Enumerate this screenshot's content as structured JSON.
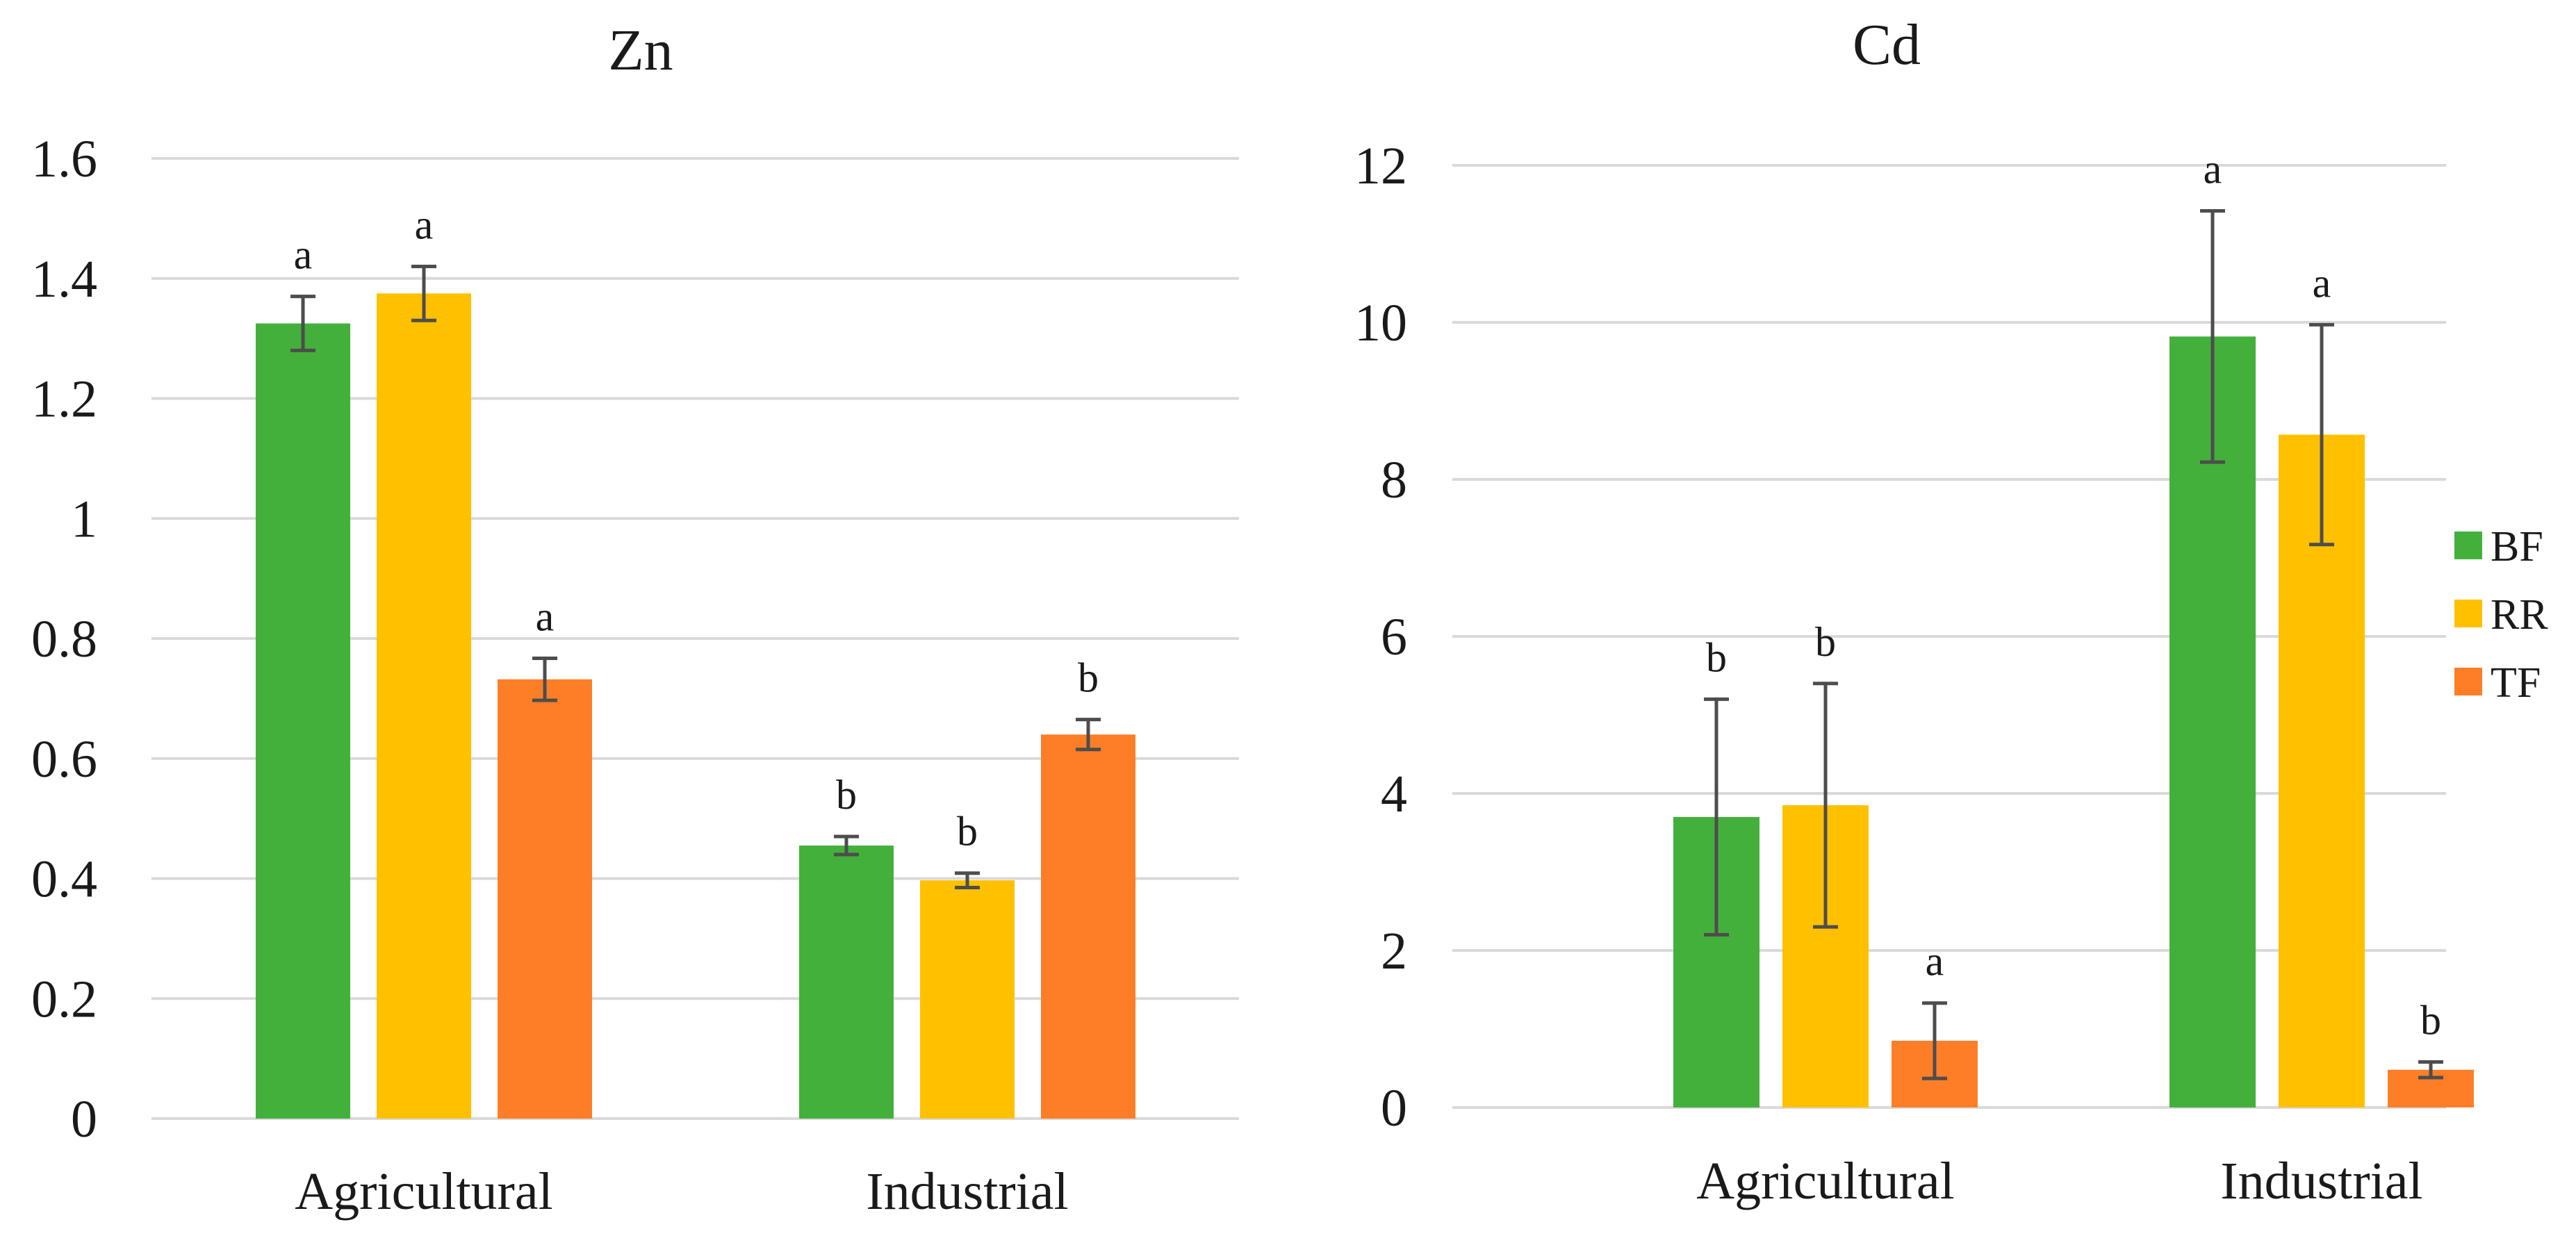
{
  "chart_data": [
    {
      "type": "bar",
      "title": "Zn",
      "categories": [
        "Agricultural",
        "Industrial"
      ],
      "series": [
        {
          "name": "BF",
          "values": [
            1.325,
            0.455
          ],
          "errors": [
            0.045,
            0.015
          ],
          "labels": [
            "a",
            "b"
          ]
        },
        {
          "name": "RR",
          "values": [
            1.375,
            0.397
          ],
          "errors": [
            0.045,
            0.012
          ],
          "labels": [
            "a",
            "b"
          ]
        },
        {
          "name": "TF",
          "values": [
            0.732,
            0.64
          ],
          "errors": [
            0.035,
            0.025
          ],
          "labels": [
            "a",
            "b"
          ]
        }
      ],
      "ylim": [
        0,
        1.6
      ],
      "yticks": [
        0,
        0.2,
        0.4,
        0.6,
        0.8,
        1,
        1.2,
        1.4,
        1.6
      ],
      "ytick_labels": [
        "0",
        "0.2",
        "0.4",
        "0.6",
        "0.8",
        "1",
        "1.2",
        "1.4",
        "1.6"
      ],
      "xlabel": "",
      "ylabel": "",
      "grid": true
    },
    {
      "type": "bar",
      "title": "Cd",
      "categories": [
        "Agricultural",
        "Industrial"
      ],
      "series": [
        {
          "name": "BF",
          "values": [
            3.7,
            9.82
          ],
          "errors": [
            1.5,
            1.6
          ],
          "labels": [
            "b",
            "a"
          ]
        },
        {
          "name": "RR",
          "values": [
            3.85,
            8.57
          ],
          "errors": [
            1.55,
            1.4
          ],
          "labels": [
            "b",
            "a"
          ]
        },
        {
          "name": "TF",
          "values": [
            0.85,
            0.48
          ],
          "errors": [
            0.48,
            0.1
          ],
          "labels": [
            "a",
            "b"
          ]
        }
      ],
      "ylim": [
        0,
        12
      ],
      "yticks": [
        0,
        2,
        4,
        6,
        8,
        10,
        12
      ],
      "ytick_labels": [
        "0",
        "2",
        "4",
        "6",
        "8",
        "10",
        "12"
      ],
      "xlabel": "",
      "ylabel": "",
      "grid": true
    }
  ],
  "legend": {
    "placement": "right",
    "items": [
      {
        "name": "BF",
        "color": "#43b03c"
      },
      {
        "name": "RR",
        "color": "#ffc000"
      },
      {
        "name": "TF",
        "color": "#fd7e27"
      }
    ]
  },
  "colors": {
    "BF": "#43b03c",
    "RR": "#ffc000",
    "TF": "#fd7e27"
  }
}
